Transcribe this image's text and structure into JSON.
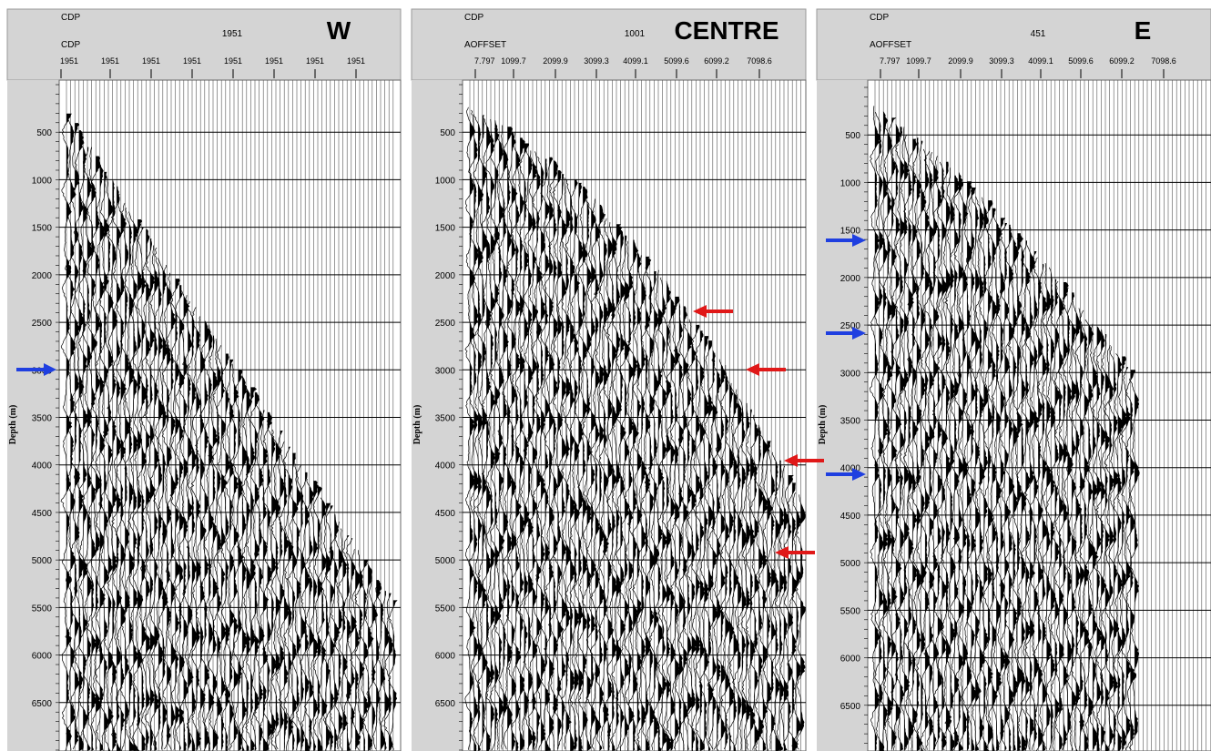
{
  "panels": [
    {
      "title": "W",
      "header_top": "CDP",
      "header_sub": "CDP",
      "header_value": "1951",
      "x_tick_labels": [
        "1951",
        "1951",
        "1951",
        "1951",
        "1951",
        "1951",
        "1951",
        "1951"
      ],
      "y_axis_label": "Depth (m)",
      "ylim": [
        0,
        7000
      ],
      "yticks": [
        500,
        1000,
        1500,
        2000,
        2500,
        3000,
        3500,
        4000,
        4500,
        5000,
        5500,
        6000,
        6500
      ]
    },
    {
      "title": "CENTRE",
      "header_top": "CDP",
      "header_sub": "AOFFSET",
      "header_value": "1001",
      "x_tick_labels": [
        "7.797",
        "1099.7",
        "2099.9",
        "3099.3",
        "4099.1",
        "5099.6",
        "6099.2",
        "7098.6"
      ],
      "y_axis_label": "Depth (m)",
      "ylim": [
        0,
        7000
      ],
      "yticks": [
        500,
        1000,
        1500,
        2000,
        2500,
        3000,
        3500,
        4000,
        4500,
        5000,
        5500,
        6000,
        6500
      ]
    },
    {
      "title": "E",
      "header_top": "CDP",
      "header_sub": "AOFFSET",
      "header_value": "451",
      "x_tick_labels": [
        "7.797",
        "1099.7",
        "2099.9",
        "3099.3",
        "4099.1",
        "5099.6",
        "6099.2",
        "7098.6"
      ],
      "y_axis_label": "Depth (m)",
      "ylim": [
        0,
        7000
      ],
      "yticks": [
        500,
        1000,
        1500,
        2000,
        2500,
        3000,
        3500,
        4000,
        4500,
        5000,
        5500,
        6000,
        6500
      ]
    }
  ]
}
